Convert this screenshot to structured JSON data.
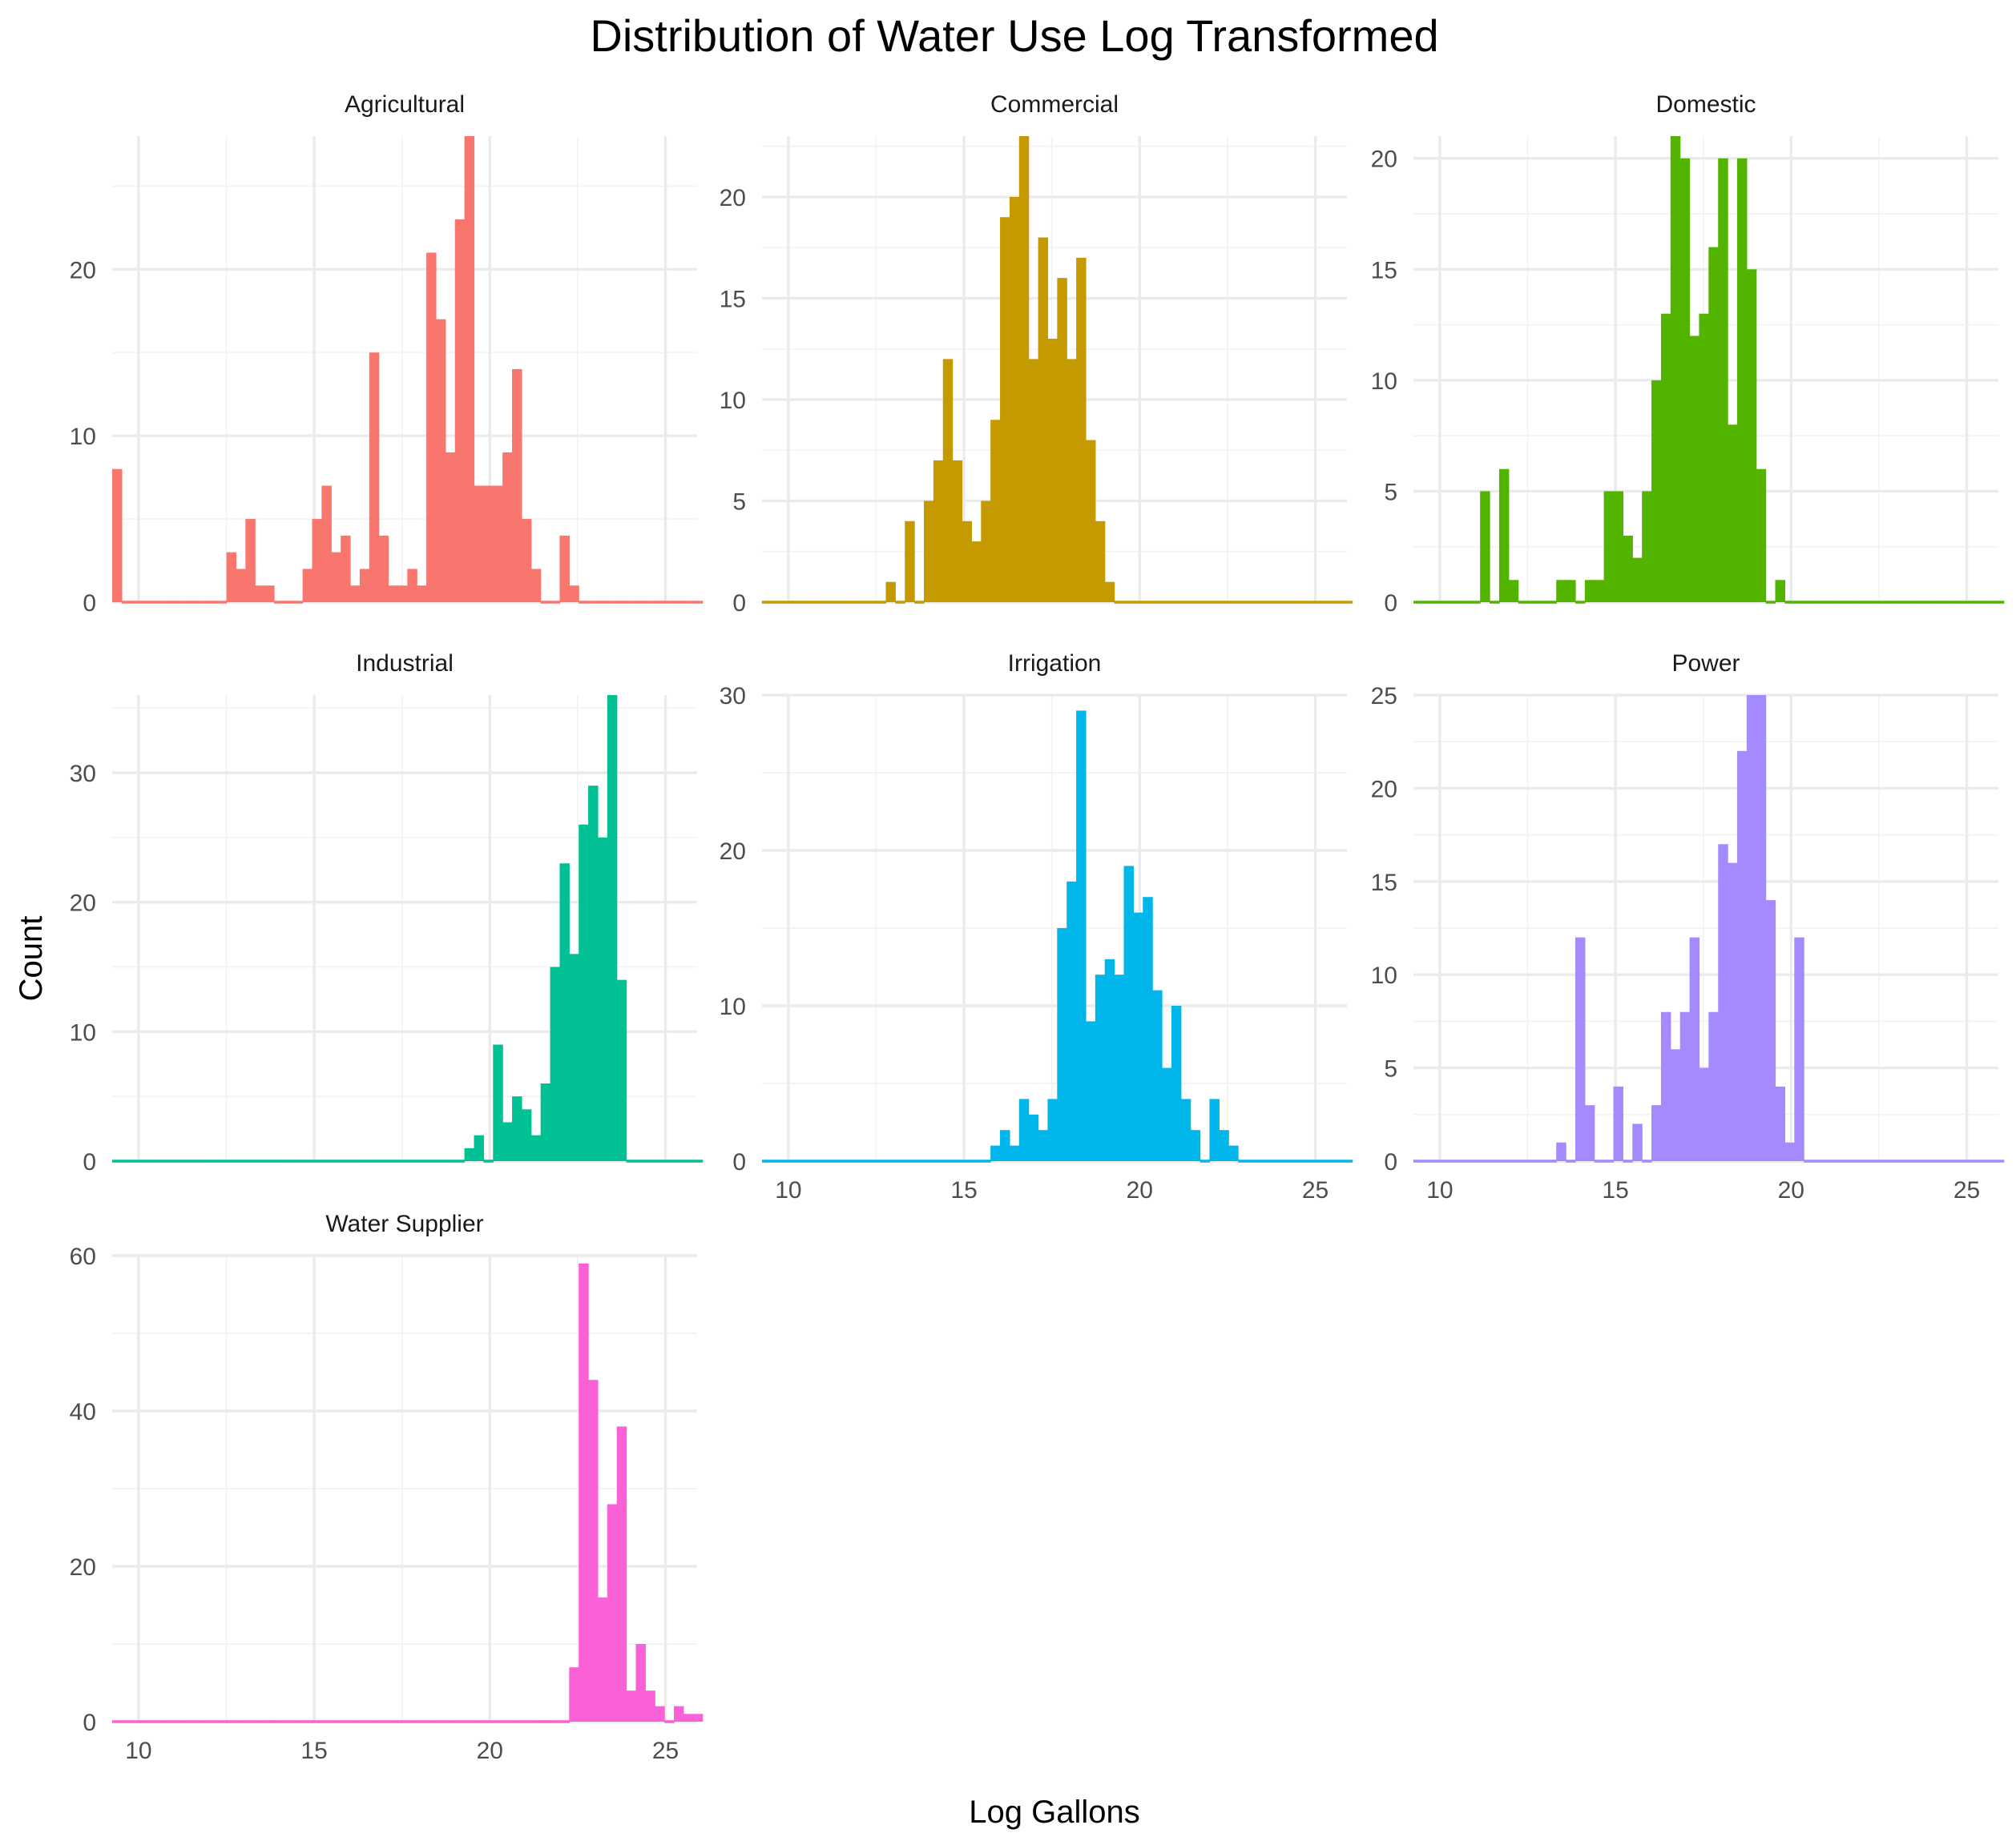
{
  "chart_data": {
    "type": "histogram-faceted",
    "title": "Distribution of Water Use Log Transformed",
    "xlabel": "Log Gallons",
    "ylabel": "Count",
    "xlim": [
      9.25,
      25.9
    ],
    "x_ticks": [
      10,
      15,
      20,
      25
    ],
    "grid": true,
    "legend": "none",
    "bin_start": 9.25,
    "bin_width": 0.271,
    "panels": [
      {
        "name": "Agricultural",
        "color": "#F8766D",
        "ylim": [
          0,
          28
        ],
        "y_ticks": [
          0,
          10,
          20
        ],
        "counts": [
          8,
          0,
          0,
          0,
          0,
          0,
          0,
          0,
          0,
          0,
          0,
          0,
          3,
          2,
          5,
          1,
          1,
          0,
          0,
          0,
          2,
          5,
          7,
          3,
          4,
          1,
          2,
          15,
          4,
          1,
          1,
          2,
          1,
          21,
          17,
          9,
          23,
          28,
          7,
          7,
          7,
          9,
          14,
          5,
          2,
          0,
          0,
          4,
          1,
          0,
          0,
          0,
          0,
          0,
          0,
          0,
          0,
          0,
          0,
          0,
          0,
          0
        ]
      },
      {
        "name": "Commercial",
        "color": "#C49A00",
        "ylim": [
          0,
          23
        ],
        "y_ticks": [
          0,
          5,
          10,
          15,
          20
        ],
        "counts": [
          0,
          0,
          0,
          0,
          0,
          0,
          0,
          0,
          0,
          0,
          0,
          0,
          0,
          1,
          0,
          4,
          0,
          5,
          7,
          12,
          7,
          4,
          3,
          5,
          9,
          19,
          20,
          23,
          12,
          18,
          13,
          16,
          12,
          17,
          8,
          4,
          1,
          0,
          0,
          0,
          0,
          0,
          0,
          0,
          0,
          0,
          0,
          0,
          0,
          0,
          0,
          0,
          0,
          0,
          0,
          0,
          0,
          0,
          0,
          0,
          0,
          0
        ]
      },
      {
        "name": "Domestic",
        "color": "#53B400",
        "ylim": [
          0,
          21
        ],
        "y_ticks": [
          0,
          5,
          10,
          15,
          20
        ],
        "counts": [
          0,
          0,
          0,
          0,
          0,
          0,
          0,
          5,
          0,
          6,
          1,
          0,
          0,
          0,
          0,
          1,
          1,
          0,
          1,
          1,
          5,
          5,
          3,
          2,
          5,
          10,
          13,
          21,
          20,
          12,
          13,
          16,
          20,
          8,
          20,
          15,
          6,
          0,
          1,
          0,
          0,
          0,
          0,
          0,
          0,
          0,
          0,
          0,
          0,
          0,
          0,
          0,
          0,
          0,
          0,
          0,
          0,
          0,
          0,
          0,
          0,
          0
        ]
      },
      {
        "name": "Industrial",
        "color": "#00C094",
        "ylim": [
          0,
          36
        ],
        "y_ticks": [
          0,
          10,
          20,
          30
        ],
        "counts": [
          0,
          0,
          0,
          0,
          0,
          0,
          0,
          0,
          0,
          0,
          0,
          0,
          0,
          0,
          0,
          0,
          0,
          0,
          0,
          0,
          0,
          0,
          0,
          0,
          0,
          0,
          0,
          0,
          0,
          0,
          0,
          0,
          0,
          0,
          0,
          0,
          0,
          1,
          2,
          0,
          9,
          3,
          5,
          4,
          2,
          6,
          15,
          23,
          16,
          26,
          29,
          25,
          36,
          14,
          0,
          0,
          0,
          0,
          0,
          0,
          0,
          0
        ]
      },
      {
        "name": "Irrigation",
        "color": "#00B6EB",
        "ylim": [
          0,
          30
        ],
        "y_ticks": [
          0,
          10,
          20,
          30
        ],
        "counts": [
          0,
          0,
          0,
          0,
          0,
          0,
          0,
          0,
          0,
          0,
          0,
          0,
          0,
          0,
          0,
          0,
          0,
          0,
          0,
          0,
          0,
          0,
          0,
          0,
          1,
          2,
          1,
          4,
          3,
          2,
          4,
          15,
          18,
          29,
          9,
          12,
          13,
          12,
          19,
          16,
          17,
          11,
          6,
          10,
          4,
          2,
          0,
          4,
          2,
          1,
          0,
          0,
          0,
          0,
          0,
          0,
          0,
          0,
          0,
          0,
          0,
          0
        ]
      },
      {
        "name": "Power",
        "color": "#A58AFF",
        "ylim": [
          0,
          25
        ],
        "y_ticks": [
          0,
          5,
          10,
          15,
          20,
          25
        ],
        "counts": [
          0,
          0,
          0,
          0,
          0,
          0,
          0,
          0,
          0,
          0,
          0,
          0,
          0,
          0,
          0,
          1,
          0,
          12,
          3,
          0,
          0,
          4,
          0,
          2,
          0,
          3,
          8,
          6,
          8,
          12,
          5,
          8,
          17,
          16,
          22,
          25,
          25,
          14,
          4,
          1,
          12,
          0,
          0,
          0,
          0,
          0,
          0,
          0,
          0,
          0,
          0,
          0,
          0,
          0,
          0,
          0,
          0,
          0,
          0,
          0,
          0,
          0
        ]
      },
      {
        "name": "Water Supplier",
        "color": "#FB61D7",
        "ylim": [
          0,
          60
        ],
        "y_ticks": [
          0,
          20,
          40,
          60
        ],
        "counts": [
          0,
          0,
          0,
          0,
          0,
          0,
          0,
          0,
          0,
          0,
          0,
          0,
          0,
          0,
          0,
          0,
          0,
          0,
          0,
          0,
          0,
          0,
          0,
          0,
          0,
          0,
          0,
          0,
          0,
          0,
          0,
          0,
          0,
          0,
          0,
          0,
          0,
          0,
          0,
          0,
          0,
          0,
          0,
          0,
          0,
          0,
          0,
          0,
          7,
          59,
          44,
          16,
          28,
          38,
          4,
          10,
          4,
          2,
          0,
          2,
          1,
          1
        ]
      }
    ]
  }
}
